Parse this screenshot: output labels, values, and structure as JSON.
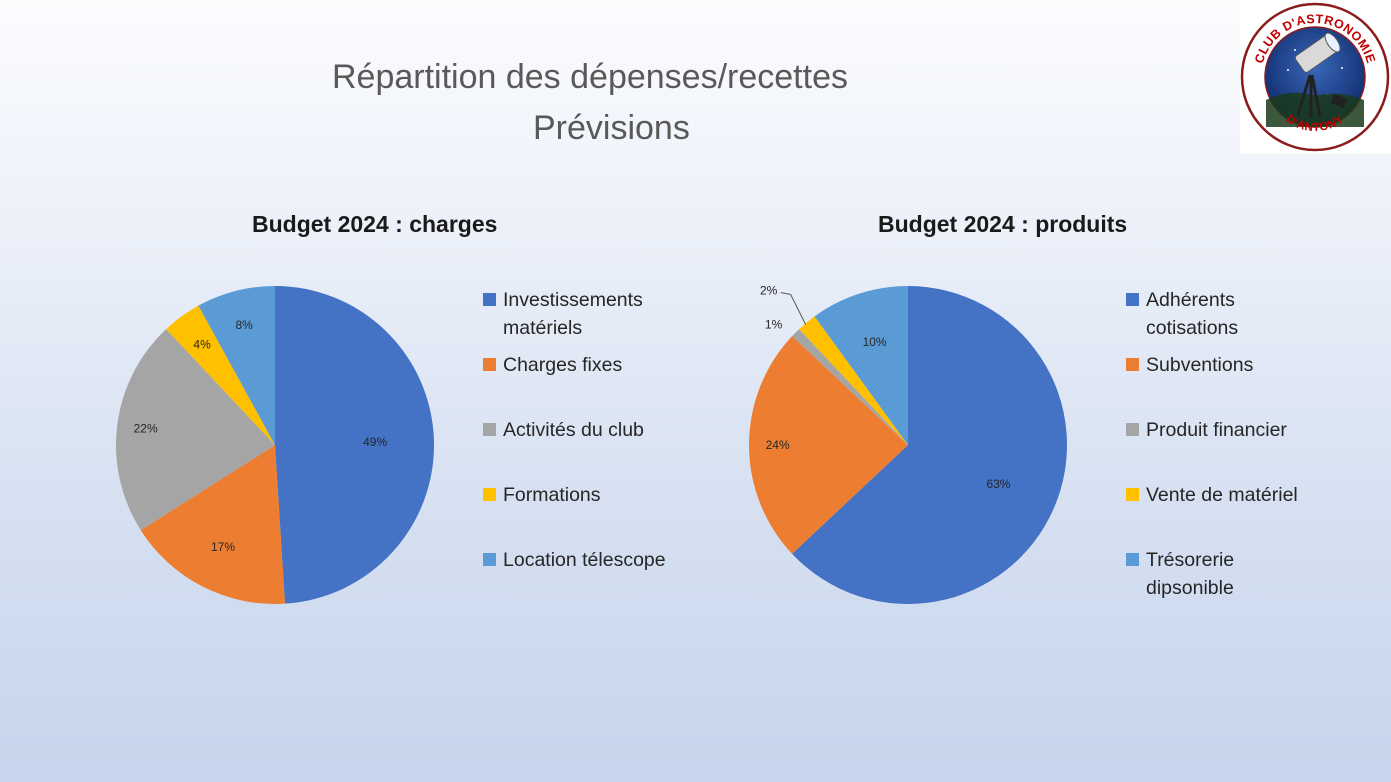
{
  "slide": {
    "title_line1": "Répartition des dépenses/recettes",
    "title_line2": "Prévisions",
    "logo_top_text": "CLUB D'ASTRONOMIE",
    "logo_bottom_text": "D'ANTONY"
  },
  "colors": {
    "blue": "#4472c4",
    "orange": "#ed7d31",
    "gray": "#a5a5a5",
    "yellow": "#ffc000",
    "lightblue": "#5b9bd5"
  },
  "chart_data": [
    {
      "type": "pie",
      "title": "Budget 2024 : charges",
      "legend_position": "right",
      "categories": [
        "Investissements\nmatériels",
        "Charges fixes",
        "Activités du club",
        "Formations",
        "Location télescope"
      ],
      "values": [
        49,
        17,
        22,
        4,
        8
      ],
      "labels": [
        "49%",
        "17%",
        "22%",
        "4%",
        "8%"
      ],
      "colors": [
        "#4472c4",
        "#ed7d31",
        "#a5a5a5",
        "#ffc000",
        "#5b9bd5"
      ]
    },
    {
      "type": "pie",
      "title": "Budget 2024 : produits",
      "legend_position": "right",
      "categories": [
        "Adhérents\ncotisations",
        "Subventions",
        "Produit  financier",
        "Vente de matériel",
        "Trésorerie\ndipsonible"
      ],
      "values": [
        63,
        24,
        1,
        2,
        10
      ],
      "labels": [
        "63%",
        "24%",
        "1%",
        "2%",
        "10%"
      ],
      "colors": [
        "#4472c4",
        "#ed7d31",
        "#a5a5a5",
        "#ffc000",
        "#5b9bd5"
      ]
    }
  ]
}
